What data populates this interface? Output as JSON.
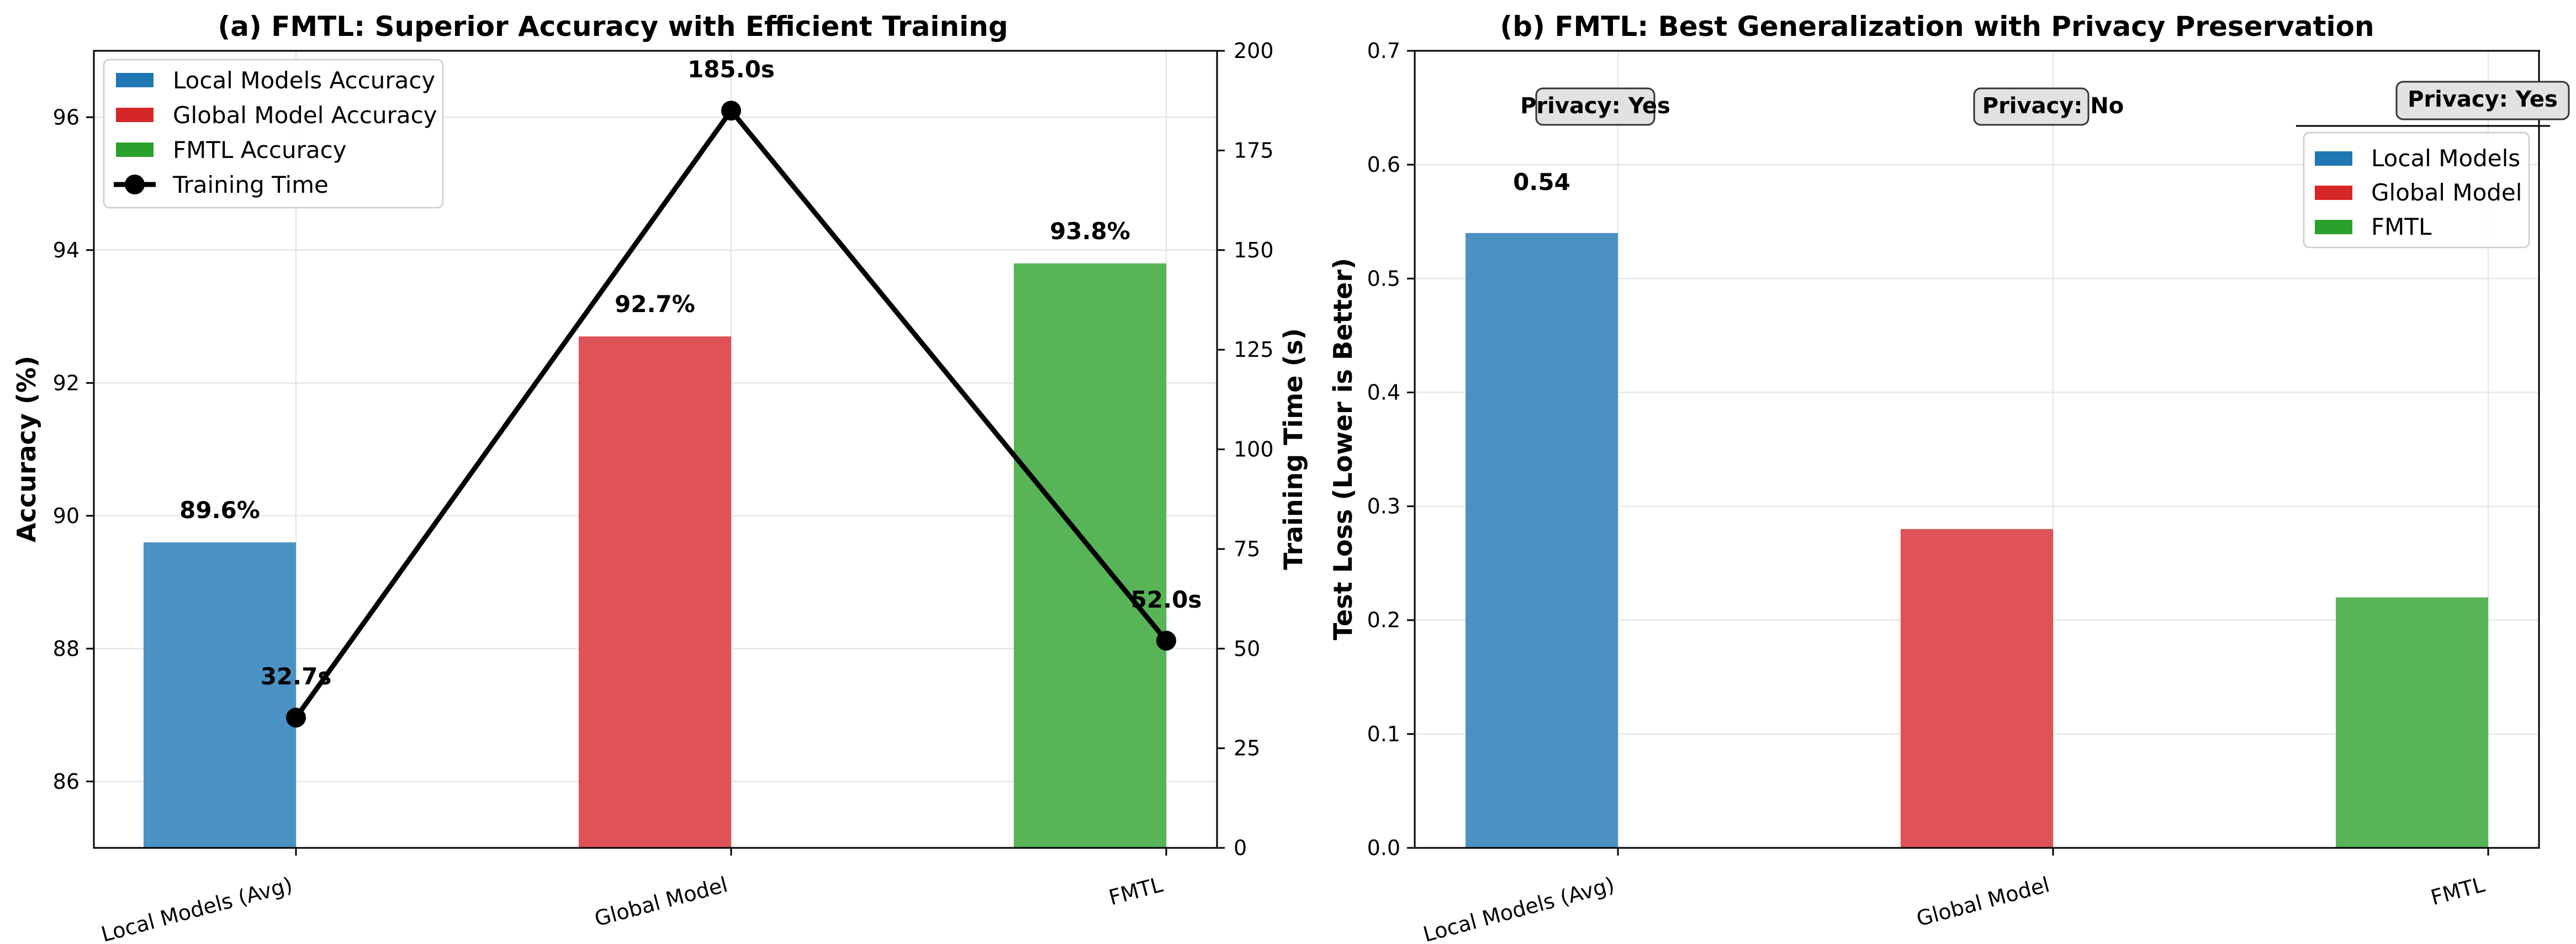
{
  "colors": {
    "blue": "#4a92c4",
    "red": "#df5257",
    "green": "#57b457",
    "legend_blue": "#1f77b4",
    "legend_red": "#d62728",
    "legend_green": "#2ca02c",
    "line": "#000000",
    "grid": "#e6e6e6",
    "badge_bg": "#e2e2e2"
  },
  "chart_data": [
    {
      "type": "bar",
      "title": "(a) FMTL: Superior Accuracy with Efficient Training",
      "categories": [
        "Local Models (Avg)",
        "Global Model",
        "FMTL"
      ],
      "ylabel": "Accuracy (%)",
      "ylim": [
        85,
        97
      ],
      "yticks": [
        "86",
        "88",
        "90",
        "92",
        "94",
        "96"
      ],
      "y2label": "Training Time (s)",
      "y2lim": [
        0,
        200
      ],
      "y2ticks": [
        "0",
        "25",
        "50",
        "75",
        "100",
        "125",
        "150",
        "175",
        "200"
      ],
      "grid": true,
      "legend_position": "top-left",
      "series": [
        {
          "name": "Local Models Accuracy",
          "type": "bar",
          "category_index": 0,
          "value": 89.6,
          "label": "89.6%",
          "color": "#4a92c4"
        },
        {
          "name": "Global Model Accuracy",
          "type": "bar",
          "category_index": 1,
          "value": 92.7,
          "label": "92.7%",
          "color": "#df5257"
        },
        {
          "name": "FMTL Accuracy",
          "type": "bar",
          "category_index": 2,
          "value": 93.8,
          "label": "93.8%",
          "color": "#57b457"
        },
        {
          "name": "Training Time",
          "type": "line",
          "axis": "right",
          "values": [
            32.7,
            185.0,
            52.0
          ],
          "labels": [
            "32.7s",
            "185.0s",
            "52.0s"
          ],
          "color": "#000000"
        }
      ]
    },
    {
      "type": "bar",
      "title": "(b) FMTL: Best Generalization with Privacy Preservation",
      "categories": [
        "Local Models (Avg)",
        "Global Model",
        "FMTL"
      ],
      "ylabel": "Test Loss (Lower is Better)",
      "ylim": [
        0,
        0.7
      ],
      "yticks": [
        "0.0",
        "0.1",
        "0.2",
        "0.3",
        "0.4",
        "0.5",
        "0.6",
        "0.7"
      ],
      "grid": true,
      "legend_position": "top-right",
      "series": [
        {
          "name": "Local Models",
          "category_index": 0,
          "value": 0.54,
          "label": "0.54",
          "color": "#4a92c4"
        },
        {
          "name": "Global Model",
          "category_index": 1,
          "value": 0.28,
          "label": "",
          "color": "#df5257"
        },
        {
          "name": "FMTL",
          "category_index": 2,
          "value": 0.22,
          "label": "",
          "color": "#57b457"
        }
      ],
      "annotations": [
        "Privacy: Yes",
        "Privacy: No",
        "Privacy: Yes"
      ]
    }
  ]
}
